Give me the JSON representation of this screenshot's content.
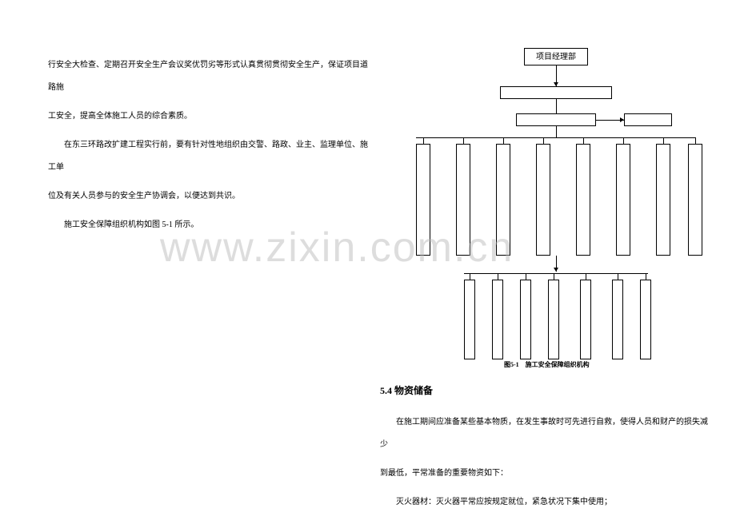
{
  "leftText": {
    "p1": "行安全大检查、定期召开安全生产会议奖优罚劣等形式认真贯彻贯彻安全生产，保证项目道路施",
    "p2": "工安全，提高全体施工人员的综合素质。",
    "p3": "在东三环路改扩建工程实行前，要有针对性地组织由交警、路政、业主、监理单位、施工单",
    "p4": "位及有关人员参与的安全生产协调会，以便达到共识。",
    "p5": "施工安全保障组织机构如图 5-1 所示。"
  },
  "diagram": {
    "topBox": "项目经理部",
    "caption": "图5-1　施工安全保障组织机构"
  },
  "section54": "5.4 物资储备",
  "bodyText": {
    "p1": "在施工期间应准备某些基本物质，在发生事故时可先进行自救，使得人员和财产的损失减少",
    "p2": "到最低，平常准备的重要物资如下：",
    "p3": "灭火器材：灭火器平常应按规定就位，紧急状况下集中使用；"
  },
  "watermark": "www.zixin.com.cn",
  "colors": {
    "text": "#000000",
    "background": "#ffffff",
    "watermark": "rgba(180,180,180,0.45)"
  }
}
